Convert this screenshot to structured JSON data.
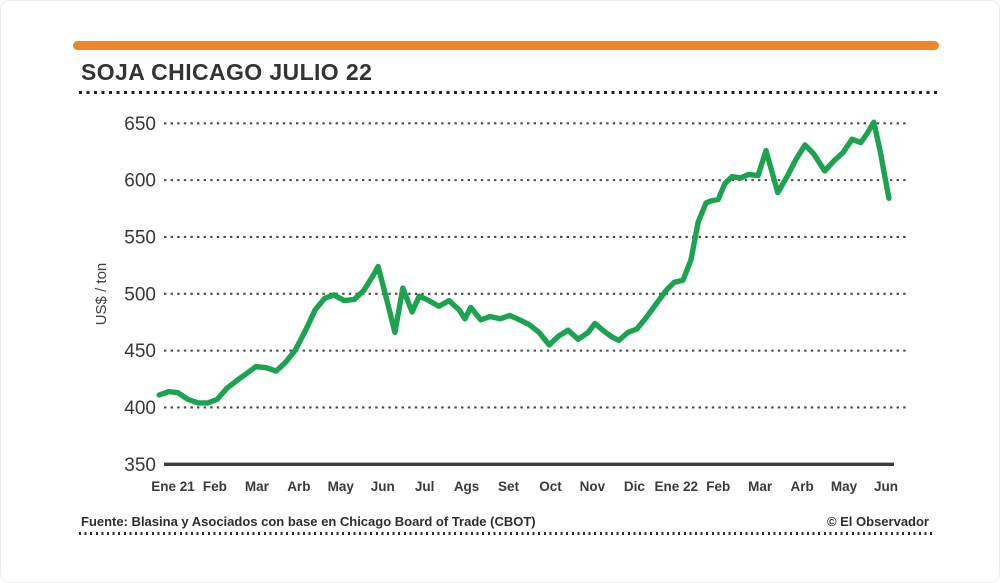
{
  "header": {
    "title": "SOJA CHICAGO JULIO 22"
  },
  "y_axis": {
    "label": "US$ / ton"
  },
  "footer": {
    "source": "Fuente: Blasina y Asociados con base en Chicago Board of Trade (CBOT)",
    "credit": "© El Observador"
  },
  "colors": {
    "accent_bar": "#f0862a",
    "line": "#1ba34f",
    "text": "#3a3a3a",
    "grid_dots": "#4b4b4b",
    "baseline": "#3c3c3c"
  },
  "chart_data": {
    "type": "line",
    "title": "SOJA CHICAGO JULIO 22",
    "xlabel": "",
    "ylabel": "US$ / ton",
    "ylim": [
      350,
      650
    ],
    "yticks": [
      350,
      400,
      450,
      500,
      550,
      600,
      650
    ],
    "grid": "horizontal dotted, solid baseline at 350",
    "legend": "none",
    "categories": [
      "Ene 21",
      "Feb",
      "Mar",
      "Arb",
      "May",
      "Jun",
      "Jul",
      "Ags",
      "Set",
      "Oct",
      "Nov",
      "Dic",
      "Ene 22",
      "Feb",
      "Mar",
      "Arb",
      "May",
      "Jun"
    ],
    "series": [
      {
        "name": "Soja Chicago Julio 22",
        "color": "#1ba34f",
        "x_unit": "month index along category axis (0 = Ene 21 tick)",
        "points": [
          [
            -0.33,
            411
          ],
          [
            -0.1,
            414
          ],
          [
            0.12,
            413
          ],
          [
            0.36,
            407
          ],
          [
            0.6,
            404
          ],
          [
            0.83,
            404
          ],
          [
            1.05,
            407
          ],
          [
            1.29,
            417
          ],
          [
            1.53,
            424
          ],
          [
            1.76,
            430
          ],
          [
            1.98,
            436
          ],
          [
            2.22,
            435
          ],
          [
            2.46,
            432
          ],
          [
            2.69,
            440
          ],
          [
            2.91,
            450
          ],
          [
            3.15,
            467
          ],
          [
            3.39,
            486
          ],
          [
            3.62,
            496
          ],
          [
            3.84,
            499
          ],
          [
            4.08,
            494
          ],
          [
            4.32,
            495
          ],
          [
            4.55,
            503
          ],
          [
            4.77,
            516
          ],
          [
            4.89,
            524
          ],
          [
            5.08,
            497
          ],
          [
            5.29,
            466
          ],
          [
            5.48,
            505
          ],
          [
            5.7,
            484
          ],
          [
            5.87,
            498
          ],
          [
            6.1,
            494
          ],
          [
            6.34,
            489
          ],
          [
            6.58,
            494
          ],
          [
            6.82,
            486
          ],
          [
            6.96,
            478
          ],
          [
            7.1,
            488
          ],
          [
            7.34,
            477
          ],
          [
            7.56,
            480
          ],
          [
            7.8,
            478
          ],
          [
            8.03,
            481
          ],
          [
            8.27,
            477
          ],
          [
            8.49,
            473
          ],
          [
            8.73,
            466
          ],
          [
            8.97,
            455
          ],
          [
            9.2,
            463
          ],
          [
            9.42,
            468
          ],
          [
            9.66,
            460
          ],
          [
            9.9,
            466
          ],
          [
            10.06,
            474
          ],
          [
            10.28,
            467
          ],
          [
            10.47,
            462
          ],
          [
            10.63,
            459
          ],
          [
            10.85,
            466
          ],
          [
            11.06,
            469
          ],
          [
            11.28,
            479
          ],
          [
            11.52,
            491
          ],
          [
            11.76,
            503
          ],
          [
            11.95,
            510
          ],
          [
            12.16,
            512
          ],
          [
            12.35,
            530
          ],
          [
            12.52,
            563
          ],
          [
            12.71,
            580
          ],
          [
            12.85,
            582
          ],
          [
            13.0,
            583
          ],
          [
            13.16,
            597
          ],
          [
            13.33,
            603
          ],
          [
            13.54,
            602
          ],
          [
            13.73,
            605
          ],
          [
            13.95,
            604
          ],
          [
            14.14,
            626
          ],
          [
            14.42,
            589
          ],
          [
            14.64,
            603
          ],
          [
            14.85,
            618
          ],
          [
            15.07,
            631
          ],
          [
            15.28,
            623
          ],
          [
            15.54,
            608
          ],
          [
            15.76,
            617
          ],
          [
            15.97,
            624
          ],
          [
            16.19,
            636
          ],
          [
            16.4,
            633
          ],
          [
            16.55,
            641
          ],
          [
            16.71,
            651
          ],
          [
            16.86,
            626
          ],
          [
            16.98,
            602
          ],
          [
            17.07,
            584
          ]
        ]
      }
    ]
  }
}
